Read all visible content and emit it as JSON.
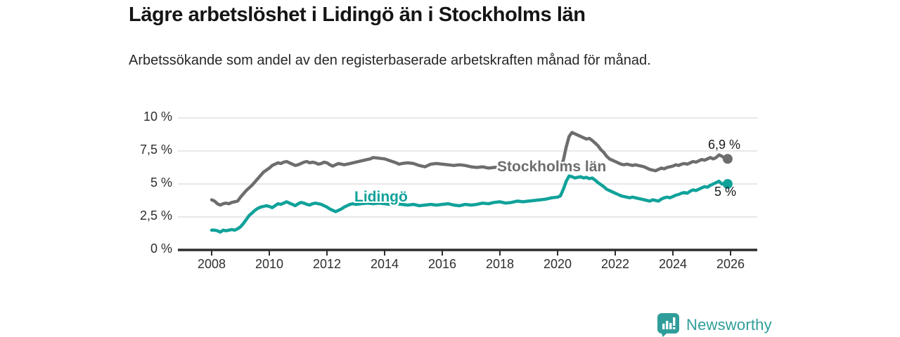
{
  "header": {
    "title": "Lägre arbetslöshet i Lidingö än i Stockholms län",
    "subtitle": "Arbetssökande som andel av den registerbaserade arbetskraften månad för månad."
  },
  "branding": {
    "wordmark": "Newsworthy",
    "logo_icon": "bar-chart-speech-bubble-icon",
    "brand_color": "#2f9e9a"
  },
  "colors": {
    "stockholm_gray": "#6d6d6d",
    "lidingo_teal": "#10a29a",
    "gridline": "#d9d9d9",
    "axis": "#2e2e2e",
    "text": "#1a1a1a"
  },
  "chart_data": {
    "type": "line",
    "title": "Lägre arbetslöshet i Lidingö än i Stockholms län",
    "subtitle": "Arbetssökande som andel av den registerbaserade arbetskraften månad för månad.",
    "grid": "horizontal",
    "legend_position": "inline-labels",
    "x_axis": {
      "ticks": [
        2008,
        2010,
        2012,
        2014,
        2016,
        2018,
        2020,
        2022,
        2024,
        2026
      ],
      "tick_labels": [
        "2008",
        "2010",
        "2012",
        "2014",
        "2016",
        "2018",
        "2020",
        "2022",
        "2024",
        "2026"
      ],
      "range": [
        2006.8,
        2026.9
      ]
    },
    "y_axis": {
      "ticks": [
        0,
        2.5,
        5,
        7.5,
        10
      ],
      "tick_labels": [
        "0 %",
        "2,5 %",
        "5 %",
        "7,5 %",
        "10 %"
      ],
      "range": [
        0,
        10
      ],
      "unit": "%"
    },
    "series": [
      {
        "name": "Stockholms län",
        "color": "#6d6d6d",
        "end_label": "6,9 %",
        "end_value": 6.9,
        "points": [
          [
            2008.0,
            3.8
          ],
          [
            2008.1,
            3.7
          ],
          [
            2008.2,
            3.5
          ],
          [
            2008.3,
            3.4
          ],
          [
            2008.4,
            3.5
          ],
          [
            2008.5,
            3.55
          ],
          [
            2008.6,
            3.5
          ],
          [
            2008.7,
            3.6
          ],
          [
            2008.8,
            3.65
          ],
          [
            2008.9,
            3.7
          ],
          [
            2009.0,
            4.0
          ],
          [
            2009.2,
            4.5
          ],
          [
            2009.4,
            4.9
          ],
          [
            2009.6,
            5.4
          ],
          [
            2009.8,
            5.9
          ],
          [
            2010.0,
            6.2
          ],
          [
            2010.1,
            6.4
          ],
          [
            2010.2,
            6.5
          ],
          [
            2010.3,
            6.6
          ],
          [
            2010.4,
            6.55
          ],
          [
            2010.5,
            6.65
          ],
          [
            2010.6,
            6.7
          ],
          [
            2010.7,
            6.6
          ],
          [
            2010.8,
            6.5
          ],
          [
            2010.9,
            6.4
          ],
          [
            2011.0,
            6.45
          ],
          [
            2011.1,
            6.55
          ],
          [
            2011.2,
            6.65
          ],
          [
            2011.3,
            6.7
          ],
          [
            2011.4,
            6.6
          ],
          [
            2011.5,
            6.65
          ],
          [
            2011.6,
            6.6
          ],
          [
            2011.7,
            6.5
          ],
          [
            2011.8,
            6.55
          ],
          [
            2011.9,
            6.65
          ],
          [
            2012.0,
            6.6
          ],
          [
            2012.1,
            6.45
          ],
          [
            2012.2,
            6.35
          ],
          [
            2012.3,
            6.45
          ],
          [
            2012.4,
            6.55
          ],
          [
            2012.5,
            6.5
          ],
          [
            2012.6,
            6.45
          ],
          [
            2012.7,
            6.5
          ],
          [
            2012.8,
            6.55
          ],
          [
            2012.9,
            6.6
          ],
          [
            2013.0,
            6.65
          ],
          [
            2013.2,
            6.75
          ],
          [
            2013.4,
            6.85
          ],
          [
            2013.5,
            6.9
          ],
          [
            2013.6,
            7.0
          ],
          [
            2013.8,
            6.95
          ],
          [
            2014.0,
            6.9
          ],
          [
            2014.2,
            6.75
          ],
          [
            2014.4,
            6.6
          ],
          [
            2014.5,
            6.5
          ],
          [
            2014.6,
            6.55
          ],
          [
            2014.8,
            6.6
          ],
          [
            2015.0,
            6.55
          ],
          [
            2015.2,
            6.4
          ],
          [
            2015.4,
            6.3
          ],
          [
            2015.6,
            6.5
          ],
          [
            2015.8,
            6.55
          ],
          [
            2016.0,
            6.5
          ],
          [
            2016.2,
            6.45
          ],
          [
            2016.4,
            6.4
          ],
          [
            2016.6,
            6.45
          ],
          [
            2016.8,
            6.4
          ],
          [
            2017.0,
            6.3
          ],
          [
            2017.2,
            6.25
          ],
          [
            2017.4,
            6.3
          ],
          [
            2017.6,
            6.2
          ],
          [
            2017.8,
            6.25
          ],
          [
            2018.0,
            6.3
          ],
          [
            2018.2,
            6.2
          ],
          [
            2018.4,
            6.15
          ],
          [
            2018.6,
            6.25
          ],
          [
            2018.8,
            6.2
          ],
          [
            2019.0,
            6.1
          ],
          [
            2019.2,
            6.15
          ],
          [
            2019.4,
            6.2
          ],
          [
            2019.6,
            6.15
          ],
          [
            2019.8,
            6.2
          ],
          [
            2020.0,
            6.2
          ],
          [
            2020.1,
            6.3
          ],
          [
            2020.2,
            6.8
          ],
          [
            2020.3,
            7.8
          ],
          [
            2020.4,
            8.6
          ],
          [
            2020.5,
            8.9
          ],
          [
            2020.6,
            8.8
          ],
          [
            2020.7,
            8.7
          ],
          [
            2020.8,
            8.6
          ],
          [
            2020.9,
            8.5
          ],
          [
            2021.0,
            8.4
          ],
          [
            2021.1,
            8.45
          ],
          [
            2021.2,
            8.3
          ],
          [
            2021.3,
            8.1
          ],
          [
            2021.4,
            7.9
          ],
          [
            2021.5,
            7.6
          ],
          [
            2021.6,
            7.4
          ],
          [
            2021.7,
            7.1
          ],
          [
            2021.8,
            6.9
          ],
          [
            2021.9,
            6.8
          ],
          [
            2022.0,
            6.7
          ],
          [
            2022.1,
            6.6
          ],
          [
            2022.2,
            6.5
          ],
          [
            2022.3,
            6.45
          ],
          [
            2022.4,
            6.5
          ],
          [
            2022.5,
            6.45
          ],
          [
            2022.6,
            6.4
          ],
          [
            2022.7,
            6.45
          ],
          [
            2022.8,
            6.4
          ],
          [
            2022.9,
            6.35
          ],
          [
            2023.0,
            6.3
          ],
          [
            2023.1,
            6.2
          ],
          [
            2023.2,
            6.1
          ],
          [
            2023.3,
            6.05
          ],
          [
            2023.4,
            6.0
          ],
          [
            2023.5,
            6.1
          ],
          [
            2023.6,
            6.2
          ],
          [
            2023.7,
            6.15
          ],
          [
            2023.8,
            6.25
          ],
          [
            2023.9,
            6.3
          ],
          [
            2024.0,
            6.35
          ],
          [
            2024.1,
            6.45
          ],
          [
            2024.2,
            6.4
          ],
          [
            2024.3,
            6.5
          ],
          [
            2024.4,
            6.55
          ],
          [
            2024.5,
            6.5
          ],
          [
            2024.6,
            6.6
          ],
          [
            2024.7,
            6.7
          ],
          [
            2024.8,
            6.65
          ],
          [
            2024.9,
            6.75
          ],
          [
            2025.0,
            6.85
          ],
          [
            2025.1,
            6.8
          ],
          [
            2025.2,
            6.9
          ],
          [
            2025.3,
            7.0
          ],
          [
            2025.4,
            6.9
          ],
          [
            2025.5,
            7.0
          ],
          [
            2025.6,
            7.2
          ],
          [
            2025.7,
            7.1
          ],
          [
            2025.8,
            6.95
          ],
          [
            2025.9,
            6.9
          ]
        ]
      },
      {
        "name": "Lidingö",
        "color": "#10a29a",
        "end_label": "5 %",
        "end_value": 5.0,
        "points": [
          [
            2008.0,
            1.5
          ],
          [
            2008.1,
            1.5
          ],
          [
            2008.2,
            1.45
          ],
          [
            2008.3,
            1.35
          ],
          [
            2008.4,
            1.5
          ],
          [
            2008.5,
            1.45
          ],
          [
            2008.6,
            1.5
          ],
          [
            2008.7,
            1.55
          ],
          [
            2008.8,
            1.5
          ],
          [
            2008.9,
            1.6
          ],
          [
            2009.0,
            1.75
          ],
          [
            2009.1,
            2.0
          ],
          [
            2009.2,
            2.3
          ],
          [
            2009.3,
            2.6
          ],
          [
            2009.4,
            2.8
          ],
          [
            2009.5,
            3.0
          ],
          [
            2009.6,
            3.15
          ],
          [
            2009.7,
            3.25
          ],
          [
            2009.8,
            3.3
          ],
          [
            2009.9,
            3.35
          ],
          [
            2010.0,
            3.3
          ],
          [
            2010.1,
            3.2
          ],
          [
            2010.2,
            3.35
          ],
          [
            2010.3,
            3.5
          ],
          [
            2010.4,
            3.45
          ],
          [
            2010.5,
            3.55
          ],
          [
            2010.6,
            3.65
          ],
          [
            2010.7,
            3.55
          ],
          [
            2010.8,
            3.45
          ],
          [
            2010.9,
            3.35
          ],
          [
            2011.0,
            3.5
          ],
          [
            2011.1,
            3.6
          ],
          [
            2011.2,
            3.55
          ],
          [
            2011.3,
            3.45
          ],
          [
            2011.4,
            3.4
          ],
          [
            2011.5,
            3.5
          ],
          [
            2011.6,
            3.55
          ],
          [
            2011.7,
            3.5
          ],
          [
            2011.8,
            3.45
          ],
          [
            2011.9,
            3.35
          ],
          [
            2012.0,
            3.25
          ],
          [
            2012.1,
            3.1
          ],
          [
            2012.2,
            3.0
          ],
          [
            2012.3,
            2.9
          ],
          [
            2012.4,
            3.0
          ],
          [
            2012.5,
            3.1
          ],
          [
            2012.6,
            3.25
          ],
          [
            2012.7,
            3.35
          ],
          [
            2012.8,
            3.45
          ],
          [
            2012.9,
            3.5
          ],
          [
            2013.0,
            3.45
          ],
          [
            2013.2,
            3.5
          ],
          [
            2013.4,
            3.55
          ],
          [
            2013.6,
            3.5
          ],
          [
            2013.8,
            3.55
          ],
          [
            2014.0,
            3.5
          ],
          [
            2014.2,
            3.45
          ],
          [
            2014.4,
            3.5
          ],
          [
            2014.6,
            3.45
          ],
          [
            2014.8,
            3.4
          ],
          [
            2015.0,
            3.45
          ],
          [
            2015.2,
            3.35
          ],
          [
            2015.4,
            3.4
          ],
          [
            2015.6,
            3.45
          ],
          [
            2015.8,
            3.4
          ],
          [
            2016.0,
            3.45
          ],
          [
            2016.2,
            3.5
          ],
          [
            2016.4,
            3.4
          ],
          [
            2016.6,
            3.35
          ],
          [
            2016.8,
            3.45
          ],
          [
            2017.0,
            3.4
          ],
          [
            2017.2,
            3.45
          ],
          [
            2017.4,
            3.55
          ],
          [
            2017.6,
            3.5
          ],
          [
            2017.8,
            3.6
          ],
          [
            2018.0,
            3.65
          ],
          [
            2018.2,
            3.55
          ],
          [
            2018.4,
            3.6
          ],
          [
            2018.6,
            3.7
          ],
          [
            2018.8,
            3.65
          ],
          [
            2019.0,
            3.7
          ],
          [
            2019.2,
            3.75
          ],
          [
            2019.4,
            3.8
          ],
          [
            2019.6,
            3.85
          ],
          [
            2019.8,
            3.95
          ],
          [
            2020.0,
            4.0
          ],
          [
            2020.1,
            4.1
          ],
          [
            2020.2,
            4.6
          ],
          [
            2020.3,
            5.2
          ],
          [
            2020.4,
            5.6
          ],
          [
            2020.5,
            5.55
          ],
          [
            2020.6,
            5.45
          ],
          [
            2020.7,
            5.5
          ],
          [
            2020.8,
            5.55
          ],
          [
            2020.9,
            5.45
          ],
          [
            2021.0,
            5.5
          ],
          [
            2021.1,
            5.4
          ],
          [
            2021.2,
            5.45
          ],
          [
            2021.3,
            5.3
          ],
          [
            2021.4,
            5.1
          ],
          [
            2021.5,
            4.95
          ],
          [
            2021.6,
            4.8
          ],
          [
            2021.7,
            4.6
          ],
          [
            2021.8,
            4.5
          ],
          [
            2021.9,
            4.4
          ],
          [
            2022.0,
            4.3
          ],
          [
            2022.1,
            4.2
          ],
          [
            2022.2,
            4.1
          ],
          [
            2022.3,
            4.05
          ],
          [
            2022.4,
            4.0
          ],
          [
            2022.5,
            3.95
          ],
          [
            2022.6,
            4.0
          ],
          [
            2022.7,
            3.95
          ],
          [
            2022.8,
            3.9
          ],
          [
            2022.9,
            3.85
          ],
          [
            2023.0,
            3.8
          ],
          [
            2023.1,
            3.75
          ],
          [
            2023.2,
            3.7
          ],
          [
            2023.3,
            3.8
          ],
          [
            2023.4,
            3.75
          ],
          [
            2023.5,
            3.7
          ],
          [
            2023.6,
            3.85
          ],
          [
            2023.7,
            3.95
          ],
          [
            2023.8,
            4.0
          ],
          [
            2023.9,
            3.95
          ],
          [
            2024.0,
            4.05
          ],
          [
            2024.1,
            4.15
          ],
          [
            2024.2,
            4.2
          ],
          [
            2024.3,
            4.3
          ],
          [
            2024.4,
            4.35
          ],
          [
            2024.5,
            4.3
          ],
          [
            2024.6,
            4.45
          ],
          [
            2024.7,
            4.55
          ],
          [
            2024.8,
            4.5
          ],
          [
            2024.9,
            4.6
          ],
          [
            2025.0,
            4.7
          ],
          [
            2025.1,
            4.8
          ],
          [
            2025.2,
            4.75
          ],
          [
            2025.3,
            4.9
          ],
          [
            2025.4,
            5.0
          ],
          [
            2025.5,
            5.1
          ],
          [
            2025.6,
            5.2
          ],
          [
            2025.7,
            5.0
          ],
          [
            2025.8,
            5.05
          ],
          [
            2025.9,
            5.0
          ]
        ]
      }
    ]
  }
}
